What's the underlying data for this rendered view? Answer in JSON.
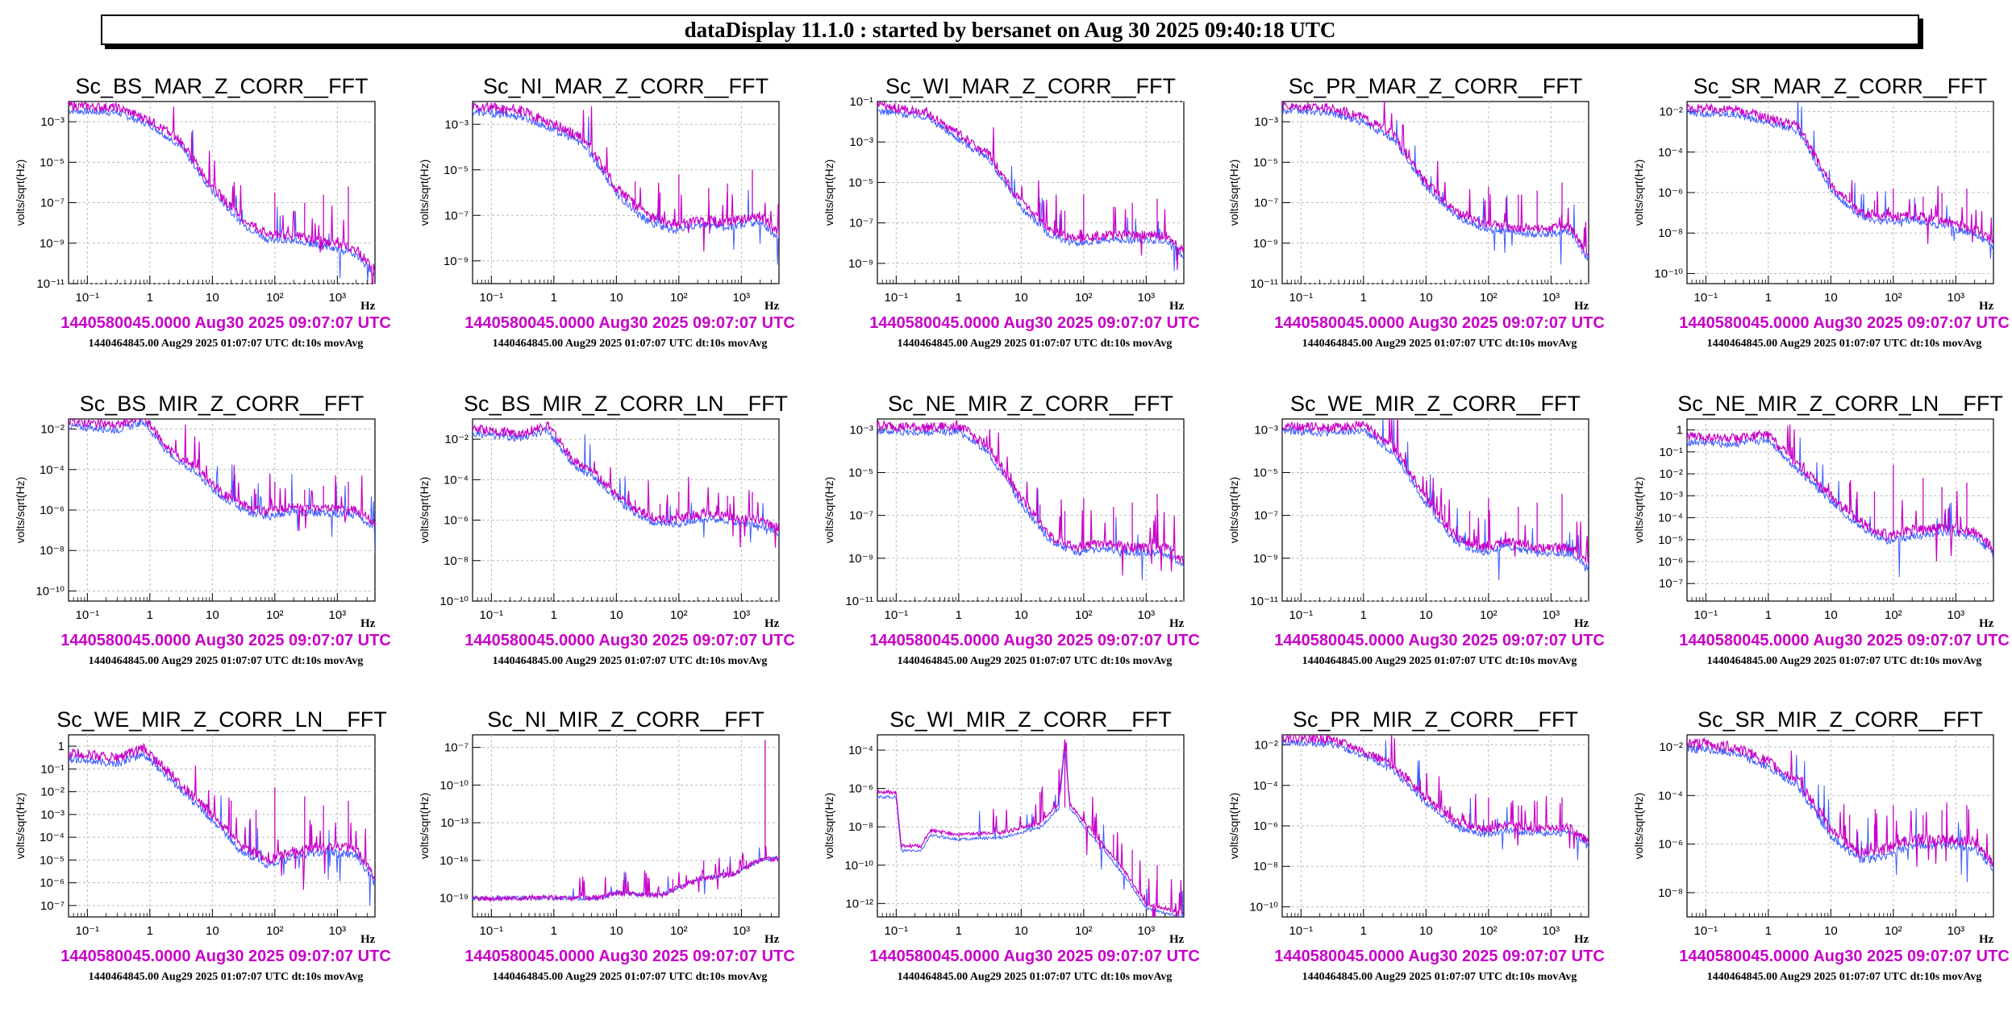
{
  "banner": "dataDisplay 11.1.0 : started by bersanet on Aug 30 2025 09:40:18 UTC",
  "colors": {
    "reference": "#c800c8",
    "current": "#3c5cff"
  },
  "common": {
    "ylabel": "volts/sqrt(Hz)",
    "xunit": "Hz",
    "ts_current": "1440580045.0000 Aug30 2025 09:07:07 UTC",
    "ts_reference": "1440464845.00 Aug29 2025 01:07:07 UTC dt:10s movAvg",
    "xticks": [
      "10⁻¹",
      "1",
      "10",
      "10²",
      "10³"
    ]
  },
  "chart_data": [
    {
      "type": "line",
      "title": "Sc_BS_MAR_Z_CORR__FFT",
      "xscale": "log",
      "yscale": "log",
      "xlim": [
        0.05,
        4000
      ],
      "ylim_exp": [
        -11,
        -2
      ],
      "yticks": [
        "10⁻³",
        "10⁻⁵",
        "10⁻⁷",
        "10⁻⁹",
        "10⁻¹¹"
      ],
      "shape": "std",
      "points": [
        [
          0.05,
          -2.2
        ],
        [
          0.3,
          -2.3
        ],
        [
          1,
          -2.9
        ],
        [
          3,
          -3.9
        ],
        [
          10,
          -6.2
        ],
        [
          30,
          -7.8
        ],
        [
          80,
          -8.6
        ],
        [
          200,
          -8.6
        ],
        [
          600,
          -8.9
        ],
        [
          2000,
          -9.3
        ],
        [
          4000,
          -10.3
        ]
      ],
      "spike_exp": [
        -7,
        -8,
        -6.5,
        -7,
        -6.6,
        -6.2
      ]
    },
    {
      "type": "line",
      "title": "Sc_NI_MAR_Z_CORR__FFT",
      "xscale": "log",
      "yscale": "log",
      "xlim": [
        0.05,
        4000
      ],
      "ylim_exp": [
        -10,
        -2
      ],
      "yticks": [
        "10⁻³",
        "10⁻⁵",
        "10⁻⁷",
        "10⁻⁹"
      ],
      "shape": "std",
      "points": [
        [
          0.05,
          -2.2
        ],
        [
          0.3,
          -2.4
        ],
        [
          1,
          -3
        ],
        [
          3,
          -3.6
        ],
        [
          10,
          -5.8
        ],
        [
          30,
          -7
        ],
        [
          80,
          -7.4
        ],
        [
          200,
          -7.2
        ],
        [
          600,
          -7.3
        ],
        [
          2000,
          -7
        ],
        [
          4000,
          -7.8
        ]
      ],
      "spike_exp": [
        -5.5,
        -6,
        -5.2,
        -5.8,
        -5.6,
        -5
      ]
    },
    {
      "type": "line",
      "title": "Sc_WI_MAR_Z_CORR__FFT",
      "xscale": "log",
      "yscale": "log",
      "xlim": [
        0.05,
        4000
      ],
      "ylim_exp": [
        -10,
        -1
      ],
      "yticks": [
        "10⁻¹",
        "10⁻³",
        "10⁻⁵",
        "10⁻⁷",
        "10⁻⁹"
      ],
      "shape": "std",
      "points": [
        [
          0.05,
          -1.2
        ],
        [
          0.3,
          -1.5
        ],
        [
          1,
          -2.6
        ],
        [
          3,
          -3.6
        ],
        [
          10,
          -6
        ],
        [
          30,
          -7.4
        ],
        [
          80,
          -7.8
        ],
        [
          200,
          -7.6
        ],
        [
          600,
          -7.6
        ],
        [
          2000,
          -7.6
        ],
        [
          4000,
          -8.4
        ]
      ],
      "spike_exp": [
        -6,
        -6.4,
        -5.6,
        -6.2,
        -6,
        -5.8
      ]
    },
    {
      "type": "line",
      "title": "Sc_PR_MAR_Z_CORR__FFT",
      "xscale": "log",
      "yscale": "log",
      "xlim": [
        0.05,
        4000
      ],
      "ylim_exp": [
        -11,
        -2
      ],
      "yticks": [
        "10⁻³",
        "10⁻⁵",
        "10⁻⁷",
        "10⁻⁹",
        "10⁻¹¹"
      ],
      "shape": "std",
      "points": [
        [
          0.05,
          -2.2
        ],
        [
          0.3,
          -2.3
        ],
        [
          1,
          -2.8
        ],
        [
          3,
          -3.6
        ],
        [
          10,
          -6
        ],
        [
          30,
          -7.4
        ],
        [
          80,
          -8
        ],
        [
          200,
          -8.2
        ],
        [
          600,
          -8.3
        ],
        [
          2000,
          -8.2
        ],
        [
          4000,
          -9.6
        ]
      ],
      "spike_exp": [
        -6.5,
        -7,
        -6.2,
        -6.6,
        -6.4,
        -6
      ]
    },
    {
      "type": "line",
      "title": "Sc_SR_MAR_Z_CORR__FFT",
      "xscale": "log",
      "yscale": "log",
      "xlim": [
        0.05,
        4000
      ],
      "ylim_exp": [
        -10.5,
        -1.5
      ],
      "yticks": [
        "10⁻²",
        "10⁻⁴",
        "10⁻⁶",
        "10⁻⁸",
        "10⁻¹⁰"
      ],
      "shape": "std",
      "points": [
        [
          0.05,
          -1.8
        ],
        [
          0.3,
          -1.9
        ],
        [
          1,
          -2.3
        ],
        [
          3,
          -2.7
        ],
        [
          10,
          -5.6
        ],
        [
          30,
          -7
        ],
        [
          80,
          -7.2
        ],
        [
          200,
          -7.1
        ],
        [
          600,
          -7.4
        ],
        [
          2000,
          -7.8
        ],
        [
          4000,
          -8.4
        ]
      ],
      "spike_exp": [
        -6,
        -6.4,
        -5.8,
        -6.2,
        -6,
        -5.8
      ]
    },
    {
      "type": "line",
      "title": "Sc_BS_MIR_Z_CORR__FFT",
      "xscale": "log",
      "yscale": "log",
      "xlim": [
        0.05,
        4000
      ],
      "ylim_exp": [
        -10.5,
        -1.5
      ],
      "yticks": [
        "10⁻²",
        "10⁻⁴",
        "10⁻⁶",
        "10⁻⁸",
        "10⁻¹⁰"
      ],
      "shape": "std",
      "points": [
        [
          0.05,
          -1.6
        ],
        [
          0.3,
          -1.8
        ],
        [
          0.8,
          -1.4
        ],
        [
          2,
          -3
        ],
        [
          5,
          -3.8
        ],
        [
          15,
          -5.2
        ],
        [
          40,
          -5.9
        ],
        [
          80,
          -6.1
        ],
        [
          200,
          -5.8
        ],
        [
          600,
          -5.9
        ],
        [
          2000,
          -6
        ],
        [
          4000,
          -6.6
        ]
      ],
      "spike_exp": [
        -5,
        -5.2,
        -4.6,
        -5,
        -4.8,
        -4.6
      ]
    },
    {
      "type": "line",
      "title": "Sc_BS_MIR_Z_CORR_LN__FFT",
      "xscale": "log",
      "yscale": "log",
      "xlim": [
        0.05,
        4000
      ],
      "ylim_exp": [
        -10,
        -1
      ],
      "yticks": [
        "10⁻²",
        "10⁻⁴",
        "10⁻⁶",
        "10⁻⁸",
        "10⁻¹⁰"
      ],
      "shape": "std",
      "points": [
        [
          0.05,
          -1.5
        ],
        [
          0.3,
          -1.7
        ],
        [
          0.8,
          -1.3
        ],
        [
          2,
          -3
        ],
        [
          5,
          -3.8
        ],
        [
          15,
          -5.2
        ],
        [
          40,
          -5.9
        ],
        [
          80,
          -6
        ],
        [
          200,
          -5.7
        ],
        [
          600,
          -5.8
        ],
        [
          2000,
          -6
        ],
        [
          4000,
          -6.4
        ]
      ],
      "spike_exp": [
        -5,
        -5.2,
        -4.6,
        -5,
        -4.8,
        -4.6
      ]
    },
    {
      "type": "line",
      "title": "Sc_NE_MIR_Z_CORR__FFT",
      "xscale": "log",
      "yscale": "log",
      "xlim": [
        0.05,
        4000
      ],
      "ylim_exp": [
        -11,
        -2.5
      ],
      "yticks": [
        "10⁻³",
        "10⁻⁵",
        "10⁻⁷",
        "10⁻⁹",
        "10⁻¹¹"
      ],
      "shape": "std",
      "points": [
        [
          0.05,
          -2.8
        ],
        [
          0.3,
          -2.9
        ],
        [
          1,
          -2.8
        ],
        [
          3,
          -3.8
        ],
        [
          10,
          -6.2
        ],
        [
          30,
          -8
        ],
        [
          80,
          -8.5
        ],
        [
          200,
          -8.3
        ],
        [
          600,
          -8.5
        ],
        [
          2000,
          -8.5
        ],
        [
          4000,
          -9.1
        ]
      ],
      "spike_exp": [
        -6.5,
        -6.8,
        -6.2,
        -6.6,
        -6.4,
        -6
      ]
    },
    {
      "type": "line",
      "title": "Sc_WE_MIR_Z_CORR__FFT",
      "xscale": "log",
      "yscale": "log",
      "xlim": [
        0.05,
        4000
      ],
      "ylim_exp": [
        -11,
        -2.5
      ],
      "yticks": [
        "10⁻³",
        "10⁻⁵",
        "10⁻⁷",
        "10⁻⁹",
        "10⁻¹¹"
      ],
      "shape": "std",
      "points": [
        [
          0.05,
          -2.8
        ],
        [
          0.3,
          -2.9
        ],
        [
          1,
          -2.8
        ],
        [
          3,
          -3.8
        ],
        [
          10,
          -6.2
        ],
        [
          30,
          -8
        ],
        [
          80,
          -8.5
        ],
        [
          200,
          -8.2
        ],
        [
          600,
          -8.5
        ],
        [
          2000,
          -8.5
        ],
        [
          4000,
          -9.2
        ]
      ],
      "spike_exp": [
        -6.5,
        -6.8,
        -6.2,
        -6.6,
        -6.4,
        -6
      ]
    },
    {
      "type": "line",
      "title": "Sc_NE_MIR_Z_CORR_LN__FFT",
      "xscale": "log",
      "yscale": "log",
      "xlim": [
        0.05,
        4000
      ],
      "ylim_exp": [
        -7.8,
        0.5
      ],
      "yticks": [
        "1",
        "10⁻¹",
        "10⁻²",
        "10⁻³",
        "10⁻⁴",
        "10⁻⁵",
        "10⁻⁶",
        "10⁻⁷"
      ],
      "shape": "std",
      "points": [
        [
          0.05,
          -0.3
        ],
        [
          0.3,
          -0.4
        ],
        [
          1,
          -0.2
        ],
        [
          3,
          -1.6
        ],
        [
          10,
          -3
        ],
        [
          30,
          -4.2
        ],
        [
          80,
          -4.8
        ],
        [
          200,
          -4.6
        ],
        [
          600,
          -4.4
        ],
        [
          2000,
          -4.6
        ],
        [
          4000,
          -5.4
        ]
      ],
      "spike_exp": [
        -2.4,
        -2.8,
        -1.6,
        -2.2,
        -2.6,
        -2.4
      ]
    },
    {
      "type": "line",
      "title": "Sc_WE_MIR_Z_CORR_LN__FFT",
      "xscale": "log",
      "yscale": "log",
      "xlim": [
        0.05,
        4000
      ],
      "ylim_exp": [
        -7.5,
        0.5
      ],
      "yticks": [
        "1",
        "10⁻¹",
        "10⁻²",
        "10⁻³",
        "10⁻⁴",
        "10⁻⁵",
        "10⁻⁶",
        "10⁻⁷"
      ],
      "shape": "std",
      "points": [
        [
          0.05,
          -0.3
        ],
        [
          0.3,
          -0.5
        ],
        [
          0.8,
          -0.1
        ],
        [
          3,
          -1.6
        ],
        [
          10,
          -3
        ],
        [
          30,
          -4.4
        ],
        [
          80,
          -5
        ],
        [
          200,
          -4.6
        ],
        [
          600,
          -4.4
        ],
        [
          2000,
          -4.5
        ],
        [
          4000,
          -5.8
        ]
      ],
      "spike_exp": [
        -2.4,
        -2.8,
        -1.8,
        -2.2,
        -2.6,
        -2.4
      ]
    },
    {
      "type": "line",
      "title": "Sc_NI_MIR_Z_CORR__FFT",
      "xscale": "log",
      "yscale": "log",
      "xlim": [
        0.05,
        4000
      ],
      "ylim_exp": [
        -20.5,
        -6
      ],
      "yticks": [
        "10⁻⁷",
        "10⁻¹⁰",
        "10⁻¹³",
        "10⁻¹⁶",
        "10⁻¹⁹"
      ],
      "shape": "comb",
      "points": [
        [
          0.05,
          -19
        ],
        [
          1,
          -19
        ],
        [
          5,
          -19
        ],
        [
          10,
          -18.6
        ],
        [
          50,
          -18.8
        ],
        [
          200,
          -17.5
        ],
        [
          800,
          -17
        ],
        [
          2000,
          -16
        ],
        [
          4000,
          -15.8
        ]
      ],
      "spike_exp": [
        -17,
        -17.5,
        -16,
        -16.5,
        -16,
        -6.4
      ]
    },
    {
      "type": "line",
      "title": "Sc_WI_MIR_Z_CORR__FFT",
      "xscale": "log",
      "yscale": "log",
      "xlim": [
        0.05,
        4000
      ],
      "ylim_exp": [
        -12.7,
        -3.2
      ],
      "yticks": [
        "10⁻⁴",
        "10⁻⁶",
        "10⁻⁸",
        "10⁻¹⁰",
        "10⁻¹²"
      ],
      "shape": "peak",
      "points": [
        [
          0.05,
          -6.2
        ],
        [
          0.1,
          -6.2
        ],
        [
          0.12,
          -9
        ],
        [
          0.25,
          -9
        ],
        [
          0.35,
          -8.2
        ],
        [
          1,
          -8.4
        ],
        [
          5,
          -8.3
        ],
        [
          20,
          -7.8
        ],
        [
          40,
          -6.8
        ],
        [
          50,
          -3.5
        ],
        [
          60,
          -6.8
        ],
        [
          150,
          -8.4
        ],
        [
          500,
          -10.5
        ],
        [
          1000,
          -12
        ],
        [
          4000,
          -12.5
        ]
      ],
      "spike_exp": [
        -6.2,
        -7,
        -7.6,
        -8.4,
        -9.2,
        -10
      ]
    },
    {
      "type": "line",
      "title": "Sc_PR_MIR_Z_CORR__FFT",
      "xscale": "log",
      "yscale": "log",
      "xlim": [
        0.05,
        4000
      ],
      "ylim_exp": [
        -10.5,
        -1.5
      ],
      "yticks": [
        "10⁻²",
        "10⁻⁴",
        "10⁻⁶",
        "10⁻⁸",
        "10⁻¹⁰"
      ],
      "shape": "std",
      "points": [
        [
          0.05,
          -1.6
        ],
        [
          0.3,
          -1.7
        ],
        [
          1,
          -2.3
        ],
        [
          3,
          -3
        ],
        [
          10,
          -4.6
        ],
        [
          30,
          -5.8
        ],
        [
          80,
          -6.2
        ],
        [
          200,
          -6
        ],
        [
          600,
          -6.1
        ],
        [
          2000,
          -6.1
        ],
        [
          4000,
          -6.8
        ]
      ],
      "spike_exp": [
        -5,
        -5.4,
        -4.6,
        -5,
        -4.8,
        -4.6
      ]
    },
    {
      "type": "line",
      "title": "Sc_SR_MIR_Z_CORR__FFT",
      "xscale": "log",
      "yscale": "log",
      "xlim": [
        0.05,
        4000
      ],
      "ylim_exp": [
        -9,
        -1.5
      ],
      "yticks": [
        "10⁻²",
        "10⁻⁴",
        "10⁻⁶",
        "10⁻⁸"
      ],
      "shape": "std",
      "points": [
        [
          0.05,
          -1.8
        ],
        [
          0.3,
          -2
        ],
        [
          1,
          -2.6
        ],
        [
          3,
          -3.4
        ],
        [
          10,
          -5.4
        ],
        [
          30,
          -6.4
        ],
        [
          60,
          -6.3
        ],
        [
          200,
          -5.8
        ],
        [
          600,
          -5.8
        ],
        [
          2000,
          -5.9
        ],
        [
          4000,
          -6.8
        ]
      ],
      "spike_exp": [
        -4.8,
        -5.2,
        -4.4,
        -4.8,
        -4.6,
        -4.4
      ]
    }
  ]
}
